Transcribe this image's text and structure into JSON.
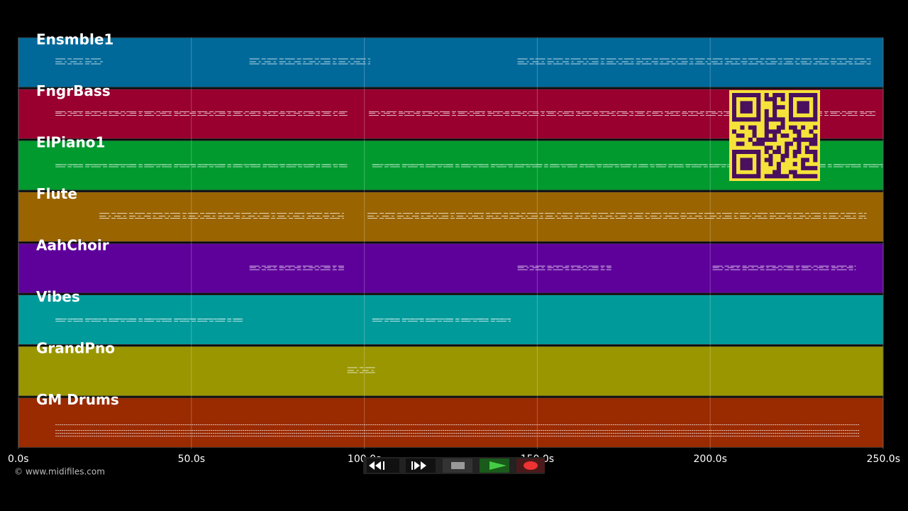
{
  "chart_data": {
    "type": "timeline",
    "tracks": [
      {
        "name": "Ensmble1",
        "color": "#00699a",
        "spans": [
          [
            10.7,
            24.4
          ],
          [
            66.8,
            101.7
          ],
          [
            144.3,
            246.4
          ]
        ]
      },
      {
        "name": "FngrBass",
        "color": "#99002f",
        "spans": [
          [
            10.7,
            95.1
          ],
          [
            101.3,
            247.8
          ]
        ]
      },
      {
        "name": "ElPiano1",
        "color": "#009a2e",
        "spans": [
          [
            10.7,
            95.1
          ],
          [
            102.3,
            249.9
          ]
        ]
      },
      {
        "name": "Flute",
        "color": "#9a6400",
        "spans": [
          [
            23.4,
            94.1
          ],
          [
            100.9,
            245.2
          ]
        ]
      },
      {
        "name": "AahChoir",
        "color": "#5e009a",
        "spans": [
          [
            66.8,
            94.1
          ],
          [
            144.3,
            171.4
          ],
          [
            200.7,
            242.1
          ]
        ]
      },
      {
        "name": "Vibes",
        "color": "#009a9a",
        "spans": [
          [
            10.7,
            65.0
          ],
          [
            102.3,
            142.3
          ]
        ]
      },
      {
        "name": "GrandPno",
        "color": "#9a9600",
        "spans": [
          [
            95.1,
            103.3
          ]
        ]
      },
      {
        "name": "GM Drums",
        "color": "#9a2a00",
        "spans": [
          [
            10.7,
            243.1
          ]
        ]
      }
    ],
    "xlim": [
      0,
      250
    ],
    "xticks": [
      {
        "value": 0,
        "label": "0.0s"
      },
      {
        "value": 50,
        "label": "50.0s"
      },
      {
        "value": 100,
        "label": "100.0s"
      },
      {
        "value": 150,
        "label": "150.0s"
      },
      {
        "value": 200,
        "label": "200.0s"
      },
      {
        "value": 250,
        "label": "250.0s"
      }
    ],
    "grid": true
  },
  "footer": {
    "copyright": "© www.midifiles.com"
  }
}
